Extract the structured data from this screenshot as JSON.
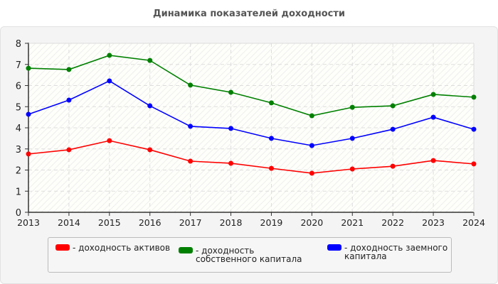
{
  "chart_data": {
    "type": "line",
    "title": "Динамика показателей доходности",
    "xlabel": "",
    "ylabel": "",
    "x": [
      2013,
      2014,
      2015,
      2016,
      2017,
      2018,
      2019,
      2020,
      2021,
      2022,
      2023,
      2024
    ],
    "ylim": [
      0,
      8
    ],
    "yticks": [
      0,
      1,
      2,
      3,
      4,
      5,
      6,
      7,
      8
    ],
    "grid": true,
    "legend_position": "bottom",
    "series": [
      {
        "name": "- доходность активов",
        "color": "#ff0000",
        "values": [
          2.76,
          2.96,
          3.39,
          2.96,
          2.42,
          2.32,
          2.08,
          1.85,
          2.05,
          2.18,
          2.45,
          2.29
        ]
      },
      {
        "name": "- доходность собственного капитала",
        "color": "#008000",
        "values": [
          6.82,
          6.76,
          7.43,
          7.19,
          6.02,
          5.68,
          5.18,
          4.57,
          4.97,
          5.04,
          5.58,
          5.45
        ]
      },
      {
        "name": "- доходность заемного капитала",
        "color": "#0000ff",
        "values": [
          4.64,
          5.31,
          6.22,
          5.04,
          4.07,
          3.97,
          3.5,
          3.16,
          3.5,
          3.93,
          4.5,
          3.93
        ]
      }
    ]
  }
}
